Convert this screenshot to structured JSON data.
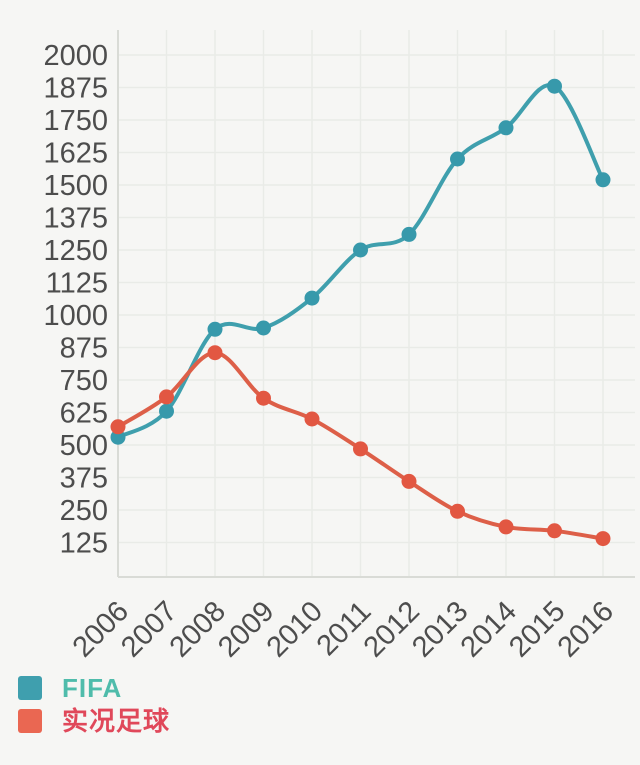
{
  "chart_data": {
    "type": "line",
    "title": "",
    "xlabel": "",
    "ylabel": "",
    "categories": [
      "2006",
      "2007",
      "2008",
      "2009",
      "2010",
      "2011",
      "2012",
      "2013",
      "2014",
      "2015",
      "2016"
    ],
    "series": [
      {
        "name": "FIFA",
        "color": "#3f9fad",
        "marker_color": "#3799ab",
        "values": [
          530,
          630,
          945,
          950,
          1065,
          1250,
          1310,
          1600,
          1720,
          1880,
          1520
        ]
      },
      {
        "name": "实况足球",
        "color": "#dd5f48",
        "marker_color": "#e25742",
        "values": [
          570,
          685,
          855,
          680,
          600,
          485,
          360,
          245,
          185,
          170,
          140
        ]
      }
    ],
    "y_ticks": [
      125,
      250,
      375,
      500,
      625,
      750,
      875,
      1000,
      1125,
      1250,
      1375,
      1500,
      1625,
      1750,
      1875,
      2000
    ],
    "ylim": [
      0,
      2096
    ],
    "grid": true,
    "x_label_rotation": -45,
    "legend_position": "bottom-left"
  },
  "legend": {
    "items": [
      {
        "label": "FIFA",
        "swatch_color": "#3f9fae",
        "text_color": "#4fbcab"
      },
      {
        "label": "实况足球",
        "swatch_color": "#ea6752",
        "text_color": "#e0485a"
      }
    ]
  },
  "colors": {
    "background": "#f6f6f4",
    "grid": "#e9ebe7",
    "axis": "#d9dbd6",
    "tick_text": "#4d4d4d"
  }
}
